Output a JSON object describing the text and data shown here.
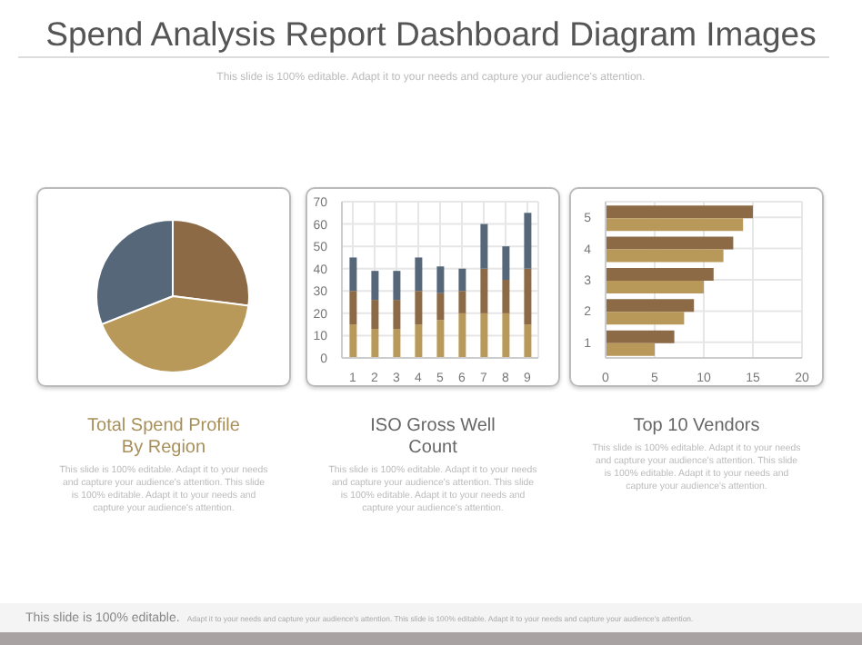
{
  "chart_data": [
    {
      "type": "other",
      "title": "Spend Analysis Report Dashboard Diagram Images",
      "subtitle": "This slide is 100% editable. Adapt it to your needs and capture your audience's attention.",
      "annotations": [
        "This slide is 100% editable.",
        "Adapt it to your needs and capture your audience's attention. This slide is 100% editable. Adapt it to your needs and capture your audience's attention."
      ]
    },
    {
      "type": "pie",
      "title": "Total Spend Profile By Region",
      "categories": [
        null,
        null,
        null
      ],
      "values": [
        27,
        42,
        31
      ],
      "colors": [
        "#8b6a45",
        "#b8995a",
        "#56677a"
      ],
      "legend": false,
      "annotations": [
        "This slide is 100% editable. Adapt it to your needs and capture your audience's attention. This slide is 100% editable. Adapt it to your needs and capture your audience's attention."
      ]
    },
    {
      "type": "bar",
      "title": "ISO Gross Well Count",
      "stacked": true,
      "categories": [
        "1",
        "2",
        "3",
        "4",
        "5",
        "6",
        "7",
        "8",
        "9"
      ],
      "series": [
        {
          "color": "#b8995a",
          "values": [
            15,
            13,
            13,
            15,
            17,
            20,
            20,
            20,
            15
          ]
        },
        {
          "color": "#8b6a45",
          "values": [
            15,
            13,
            13,
            15,
            12,
            10,
            20,
            15,
            25
          ]
        },
        {
          "color": "#56677a",
          "values": [
            15,
            13,
            13,
            15,
            12,
            10,
            20,
            15,
            25
          ]
        }
      ],
      "ylim": [
        0,
        70
      ],
      "yticks": [
        0,
        10,
        20,
        30,
        40,
        50,
        60,
        70
      ],
      "grid": true,
      "legend": false,
      "annotations": [
        "This slide is 100% editable. Adapt it to your needs and capture your audience's attention. This slide is 100% editable. Adapt it to your needs and capture your audience's attention."
      ]
    },
    {
      "type": "bar",
      "title": "Top 10 Vendors",
      "orientation": "horizontal",
      "categories": [
        "5",
        "4",
        "3",
        "2",
        "1"
      ],
      "series": [
        {
          "color": "#8b6a45",
          "values": [
            15,
            13,
            11,
            9,
            7
          ]
        },
        {
          "color": "#b8995a",
          "values": [
            14,
            12,
            10,
            8,
            5
          ]
        }
      ],
      "xlim": [
        0,
        20
      ],
      "xticks": [
        0,
        5,
        10,
        15,
        20
      ],
      "grid": true,
      "legend": false,
      "annotations": [
        "This slide is 100% editable. Adapt it to your needs and capture your audience's attention. This slide is 100% editable. Adapt it to your needs and capture your audience's attention."
      ]
    }
  ]
}
